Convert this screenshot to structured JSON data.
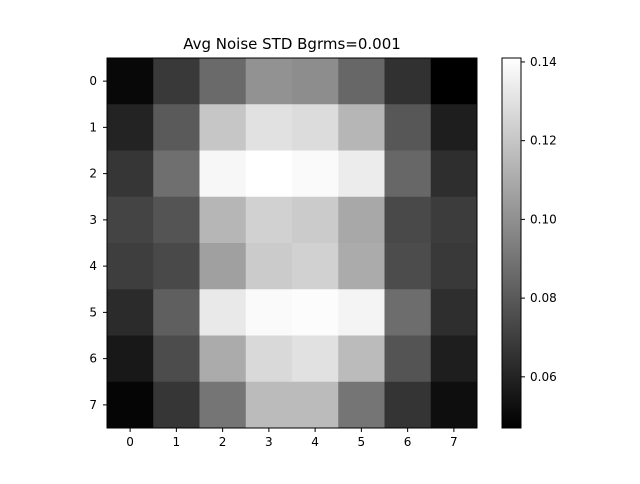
{
  "chart_data": {
    "type": "heatmap",
    "title": "Avg Noise STD Bgrms=0.001",
    "xlabel": "",
    "ylabel": "",
    "x_categories": [
      "0",
      "1",
      "2",
      "3",
      "4",
      "5",
      "6",
      "7"
    ],
    "y_categories": [
      "0",
      "1",
      "2",
      "3",
      "4",
      "5",
      "6",
      "7"
    ],
    "values": [
      [
        0.05,
        0.068,
        0.086,
        0.101,
        0.099,
        0.085,
        0.065,
        0.047
      ],
      [
        0.06,
        0.08,
        0.12,
        0.13,
        0.128,
        0.114,
        0.079,
        0.058
      ],
      [
        0.067,
        0.088,
        0.138,
        0.141,
        0.139,
        0.134,
        0.085,
        0.064
      ],
      [
        0.072,
        0.078,
        0.114,
        0.124,
        0.122,
        0.109,
        0.074,
        0.069
      ],
      [
        0.07,
        0.074,
        0.106,
        0.122,
        0.124,
        0.11,
        0.075,
        0.068
      ],
      [
        0.063,
        0.082,
        0.133,
        0.139,
        0.14,
        0.137,
        0.087,
        0.064
      ],
      [
        0.056,
        0.075,
        0.11,
        0.127,
        0.13,
        0.116,
        0.078,
        0.058
      ],
      [
        0.049,
        0.067,
        0.09,
        0.116,
        0.116,
        0.09,
        0.066,
        0.052
      ]
    ],
    "colormap": "gray",
    "vmin": 0.047,
    "vmax": 0.141,
    "colorbar_ticks": [
      "0.06",
      "0.08",
      "0.10",
      "0.12",
      "0.14"
    ],
    "colorbar_tick_values": [
      0.06,
      0.08,
      0.1,
      0.12,
      0.14
    ],
    "grid": false
  }
}
